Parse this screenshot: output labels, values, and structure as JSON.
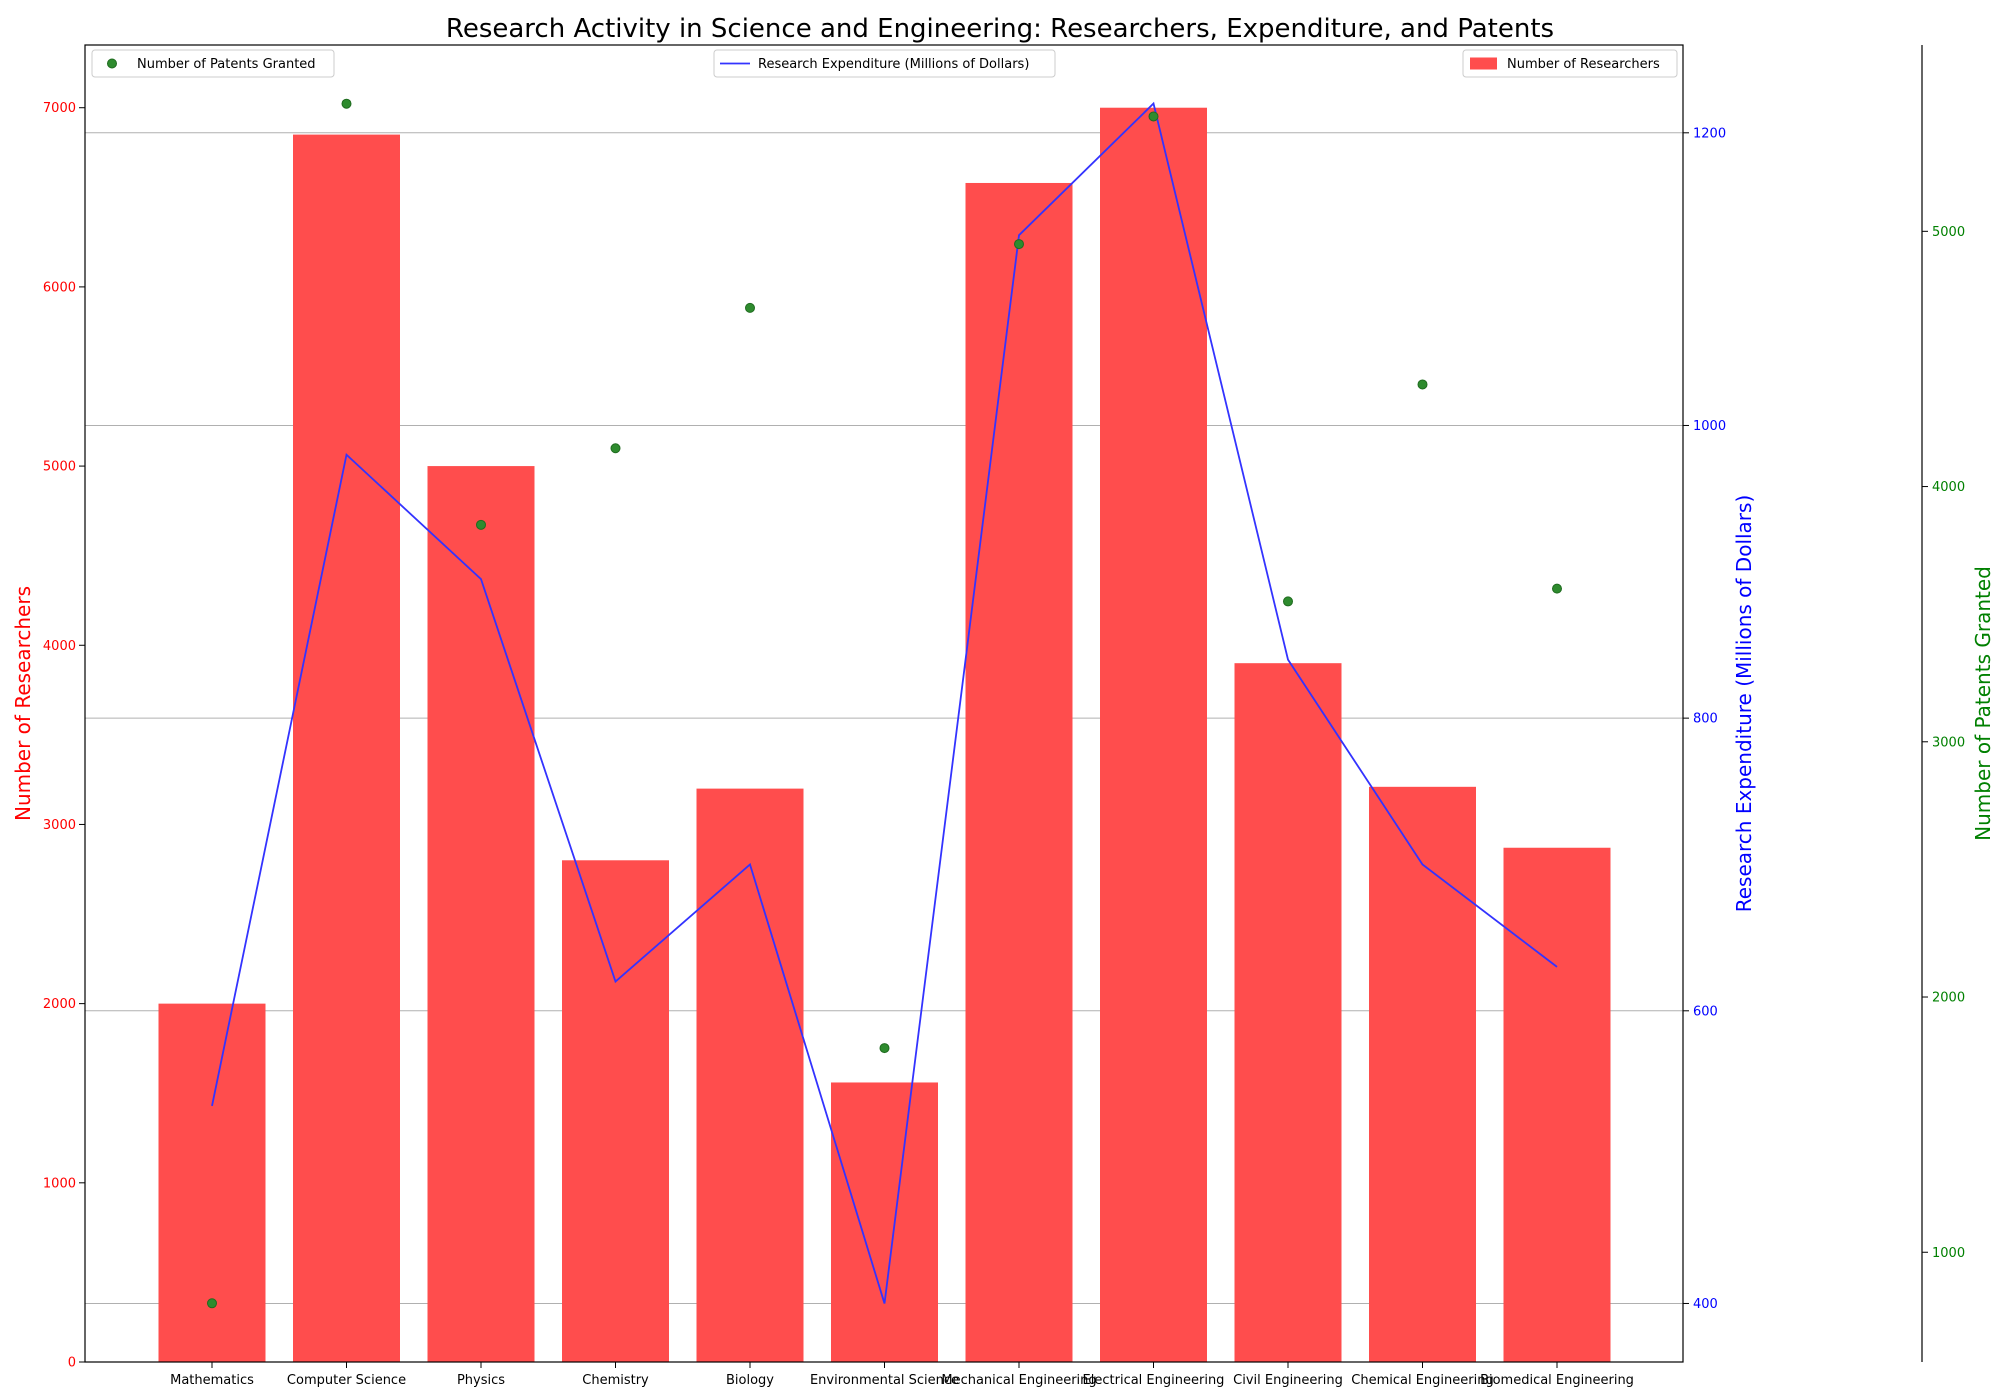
{
  "chart_data": {
    "type": "bar",
    "title": "Research Activity in Science and Engineering: Researchers, Expenditure, and Patents",
    "categories": [
      "Mathematics",
      "Computer Science",
      "Physics",
      "Chemistry",
      "Biology",
      "Environmental Science",
      "Mechanical Engineering",
      "Electrical Engineering",
      "Civil Engineering",
      "Chemical Engineering",
      "Biomedical Engineering"
    ],
    "series": [
      {
        "name": "Number of Researchers",
        "type": "bar",
        "axis": "left",
        "color": "#ff4d4d",
        "values": [
          2000,
          6850,
          5000,
          2800,
          3200,
          1560,
          6580,
          7000,
          3900,
          3210,
          2870
        ]
      },
      {
        "name": "Research Expenditure (Millions of Dollars)",
        "type": "line",
        "axis": "right",
        "color": "#3333ff",
        "values": [
          535,
          980,
          895,
          620,
          700,
          400,
          1130,
          1220,
          840,
          700,
          630
        ]
      },
      {
        "name": "Number of Patents Granted",
        "type": "scatter",
        "axis": "right2",
        "color": "#2e8b2e",
        "values": [
          800,
          5500,
          3850,
          4150,
          4700,
          1800,
          4950,
          5450,
          3550,
          4400,
          3600
        ]
      }
    ],
    "axes": {
      "left": {
        "label": "Number of Researchers",
        "color": "#ff0000",
        "ylim": [
          0,
          7350
        ],
        "ticks": [
          0,
          1000,
          2000,
          3000,
          4000,
          5000,
          6000,
          7000
        ]
      },
      "right": {
        "label": "Research Expenditure (Millions of Dollars)",
        "color": "#0000ff",
        "ylim": [
          360,
          1260
        ],
        "ticks": [
          400,
          600,
          800,
          1000,
          1200
        ]
      },
      "right2": {
        "label": "Number of Patents Granted",
        "color": "#008000",
        "ylim": [
          570,
          5730
        ],
        "ticks": [
          1000,
          2000,
          3000,
          4000,
          5000
        ]
      }
    },
    "grid": true,
    "legends": [
      "top-left",
      "top-center",
      "top-right"
    ]
  }
}
